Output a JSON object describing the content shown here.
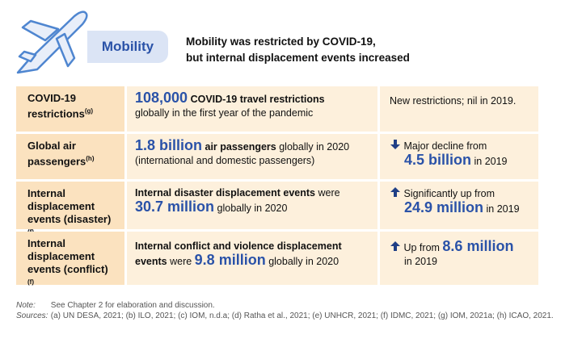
{
  "header": {
    "tag": "Mobility",
    "headline": [
      "Mobility was restricted by COVID-19,",
      "but internal displacement events increased"
    ]
  },
  "table": {
    "rows": [
      {
        "label": "COVID-19 restrictions",
        "note": "(g)",
        "measure": [
          "108,000",
          "COVID-19 travel restrictions",
          "globally in the first year of the pandemic"
        ],
        "comparison": [
          "New restrictions; nil in 2019."
        ]
      },
      {
        "label": "Global air passengers",
        "note": "(h)",
        "measure": [
          "1.8 billion",
          "air passengers",
          "globally in 2020",
          "(international and domestic passengers)"
        ],
        "comparison": [
          "Major decline from",
          "4.5 billion",
          "in 2019"
        ]
      },
      {
        "label": "Internal displacement events (disaster)",
        "note": "(f)",
        "measure": [
          "Internal disaster displacement events",
          "were",
          "30.7 million",
          "globally in 2020"
        ],
        "comparison": [
          "Significantly up from",
          "24.9 million",
          "in 2019"
        ]
      },
      {
        "label": "Internal displacement events (conflict)",
        "note": "(f)",
        "measure": [
          "Internal conflict and violence displacement events",
          "were",
          "9.8 million",
          "globally in 2020"
        ],
        "comparison": [
          "Up from",
          "8.6 million",
          "in 2019"
        ]
      }
    ]
  },
  "footer": {
    "note_label": "Note:",
    "note": "See Chapter 2 for elaboration and discussion.",
    "sources_label": "Sources:",
    "sources": "(a) UN DESA, 2021; (b) ILO, 2021; (c) IOM, n.d.a; (d) Ratha et al., 2021; (e) UNHCR, 2021; (f) IDMC, 2021; (g) IOM, 2021a; (h) ICAO, 2021."
  }
}
